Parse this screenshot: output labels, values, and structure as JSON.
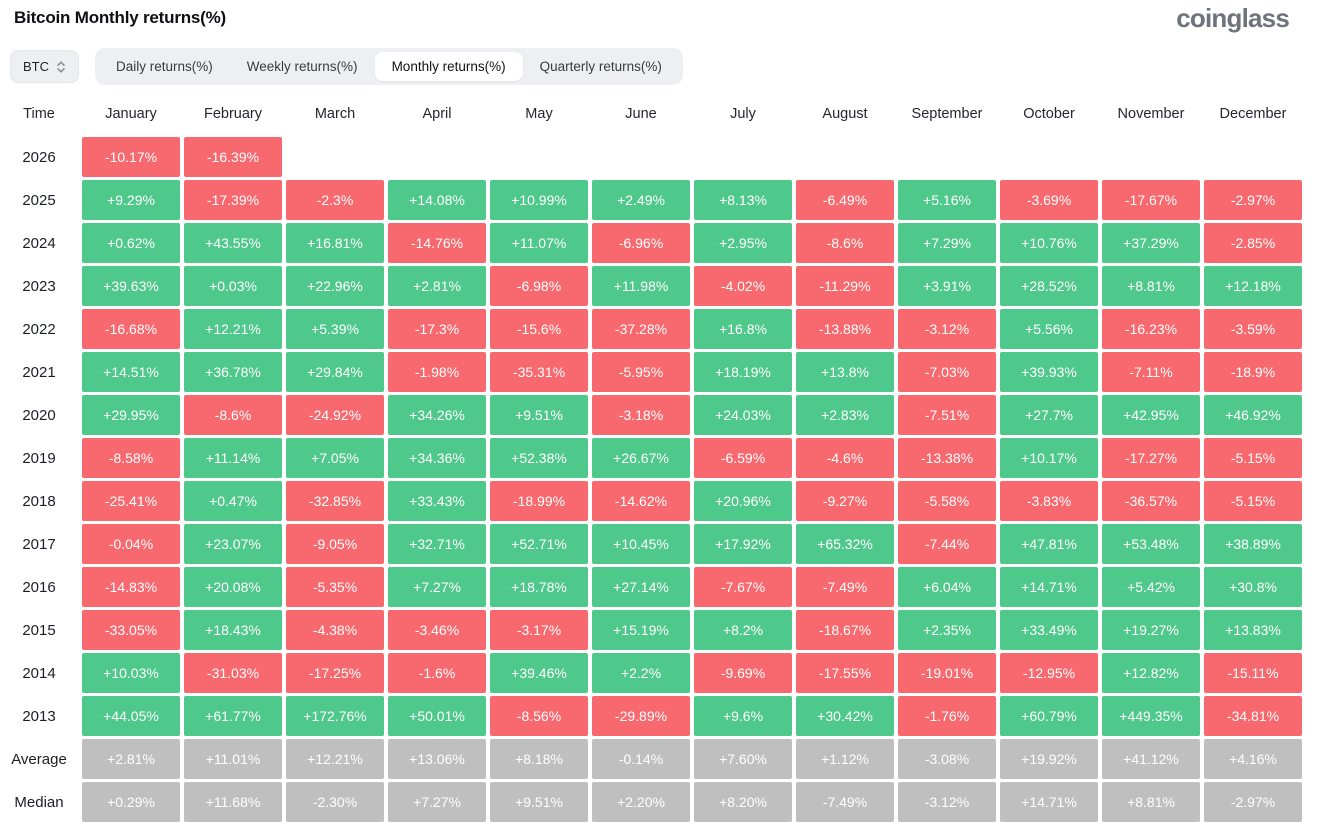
{
  "header": {
    "title": "Bitcoin Monthly returns(%)",
    "logo_text": "coinglass"
  },
  "selector": {
    "value": "BTC",
    "icon": "sort-updown-icon"
  },
  "tabs": [
    {
      "label": "Daily returns(%)",
      "active": false
    },
    {
      "label": "Weekly returns(%)",
      "active": false
    },
    {
      "label": "Monthly returns(%)",
      "active": true
    },
    {
      "label": "Quarterly returns(%)",
      "active": false
    }
  ],
  "colors": {
    "positive": "#4fc88b",
    "negative": "#f7696e",
    "summary": "#bfbfbf"
  },
  "chart_data": {
    "type": "heatmap",
    "title": "Bitcoin Monthly returns(%)",
    "time_header": "Time",
    "columns": [
      "January",
      "February",
      "March",
      "April",
      "May",
      "June",
      "July",
      "August",
      "September",
      "October",
      "November",
      "December"
    ],
    "rows": [
      {
        "label": "2026",
        "kind": "year",
        "values": [
          "-10.17%",
          "-16.39%",
          "",
          "",
          "",
          "",
          "",
          "",
          "",
          "",
          "",
          ""
        ]
      },
      {
        "label": "2025",
        "kind": "year",
        "values": [
          "+9.29%",
          "-17.39%",
          "-2.3%",
          "+14.08%",
          "+10.99%",
          "+2.49%",
          "+8.13%",
          "-6.49%",
          "+5.16%",
          "-3.69%",
          "-17.67%",
          "-2.97%"
        ]
      },
      {
        "label": "2024",
        "kind": "year",
        "values": [
          "+0.62%",
          "+43.55%",
          "+16.81%",
          "-14.76%",
          "+11.07%",
          "-6.96%",
          "+2.95%",
          "-8.6%",
          "+7.29%",
          "+10.76%",
          "+37.29%",
          "-2.85%"
        ]
      },
      {
        "label": "2023",
        "kind": "year",
        "values": [
          "+39.63%",
          "+0.03%",
          "+22.96%",
          "+2.81%",
          "-6.98%",
          "+11.98%",
          "-4.02%",
          "-11.29%",
          "+3.91%",
          "+28.52%",
          "+8.81%",
          "+12.18%"
        ]
      },
      {
        "label": "2022",
        "kind": "year",
        "values": [
          "-16.68%",
          "+12.21%",
          "+5.39%",
          "-17.3%",
          "-15.6%",
          "-37.28%",
          "+16.8%",
          "-13.88%",
          "-3.12%",
          "+5.56%",
          "-16.23%",
          "-3.59%"
        ]
      },
      {
        "label": "2021",
        "kind": "year",
        "values": [
          "+14.51%",
          "+36.78%",
          "+29.84%",
          "-1.98%",
          "-35.31%",
          "-5.95%",
          "+18.19%",
          "+13.8%",
          "-7.03%",
          "+39.93%",
          "-7.11%",
          "-18.9%"
        ]
      },
      {
        "label": "2020",
        "kind": "year",
        "values": [
          "+29.95%",
          "-8.6%",
          "-24.92%",
          "+34.26%",
          "+9.51%",
          "-3.18%",
          "+24.03%",
          "+2.83%",
          "-7.51%",
          "+27.7%",
          "+42.95%",
          "+46.92%"
        ]
      },
      {
        "label": "2019",
        "kind": "year",
        "values": [
          "-8.58%",
          "+11.14%",
          "+7.05%",
          "+34.36%",
          "+52.38%",
          "+26.67%",
          "-6.59%",
          "-4.6%",
          "-13.38%",
          "+10.17%",
          "-17.27%",
          "-5.15%"
        ]
      },
      {
        "label": "2018",
        "kind": "year",
        "values": [
          "-25.41%",
          "+0.47%",
          "-32.85%",
          "+33.43%",
          "-18.99%",
          "-14.62%",
          "+20.96%",
          "-9.27%",
          "-5.58%",
          "-3.83%",
          "-36.57%",
          "-5.15%"
        ]
      },
      {
        "label": "2017",
        "kind": "year",
        "values": [
          "-0.04%",
          "+23.07%",
          "-9.05%",
          "+32.71%",
          "+52.71%",
          "+10.45%",
          "+17.92%",
          "+65.32%",
          "-7.44%",
          "+47.81%",
          "+53.48%",
          "+38.89%"
        ]
      },
      {
        "label": "2016",
        "kind": "year",
        "values": [
          "-14.83%",
          "+20.08%",
          "-5.35%",
          "+7.27%",
          "+18.78%",
          "+27.14%",
          "-7.67%",
          "-7.49%",
          "+6.04%",
          "+14.71%",
          "+5.42%",
          "+30.8%"
        ]
      },
      {
        "label": "2015",
        "kind": "year",
        "values": [
          "-33.05%",
          "+18.43%",
          "-4.38%",
          "-3.46%",
          "-3.17%",
          "+15.19%",
          "+8.2%",
          "-18.67%",
          "+2.35%",
          "+33.49%",
          "+19.27%",
          "+13.83%"
        ]
      },
      {
        "label": "2014",
        "kind": "year",
        "values": [
          "+10.03%",
          "-31.03%",
          "-17.25%",
          "-1.6%",
          "+39.46%",
          "+2.2%",
          "-9.69%",
          "-17.55%",
          "-19.01%",
          "-12.95%",
          "+12.82%",
          "-15.11%"
        ]
      },
      {
        "label": "2013",
        "kind": "year",
        "values": [
          "+44.05%",
          "+61.77%",
          "+172.76%",
          "+50.01%",
          "-8.56%",
          "-29.89%",
          "+9.6%",
          "+30.42%",
          "-1.76%",
          "+60.79%",
          "+449.35%",
          "-34.81%"
        ]
      },
      {
        "label": "Average",
        "kind": "summary",
        "values": [
          "+2.81%",
          "+11.01%",
          "+12.21%",
          "+13.06%",
          "+8.18%",
          "-0.14%",
          "+7.60%",
          "+1.12%",
          "-3.08%",
          "+19.92%",
          "+41.12%",
          "+4.16%"
        ]
      },
      {
        "label": "Median",
        "kind": "summary",
        "values": [
          "+0.29%",
          "+11.68%",
          "-2.30%",
          "+7.27%",
          "+9.51%",
          "+2.20%",
          "+8.20%",
          "-7.49%",
          "-3.12%",
          "+14.71%",
          "+8.81%",
          "-2.97%"
        ]
      }
    ]
  }
}
